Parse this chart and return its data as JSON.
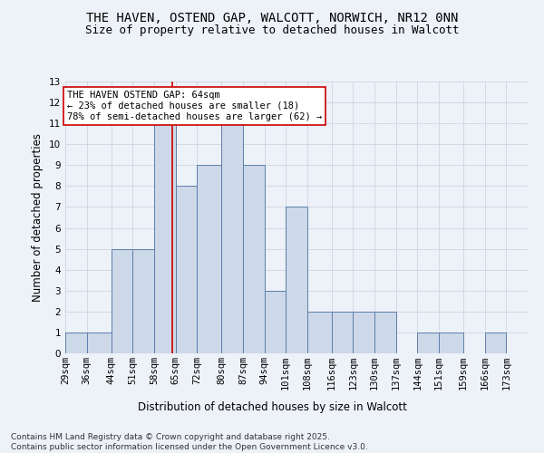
{
  "title1": "THE HAVEN, OSTEND GAP, WALCOTT, NORWICH, NR12 0NN",
  "title2": "Size of property relative to detached houses in Walcott",
  "xlabel": "Distribution of detached houses by size in Walcott",
  "ylabel": "Number of detached properties",
  "bin_labels": [
    "29sqm",
    "36sqm",
    "44sqm",
    "51sqm",
    "58sqm",
    "65sqm",
    "72sqm",
    "80sqm",
    "87sqm",
    "94sqm",
    "101sqm",
    "108sqm",
    "116sqm",
    "123sqm",
    "130sqm",
    "137sqm",
    "144sqm",
    "151sqm",
    "159sqm",
    "166sqm",
    "173sqm"
  ],
  "bin_edges": [
    29,
    36,
    44,
    51,
    58,
    65,
    72,
    80,
    87,
    94,
    101,
    108,
    116,
    123,
    130,
    137,
    144,
    151,
    159,
    166,
    173,
    180
  ],
  "counts": [
    1,
    1,
    5,
    5,
    11,
    8,
    9,
    11,
    9,
    3,
    7,
    2,
    2,
    2,
    2,
    0,
    1,
    1,
    0,
    1,
    0
  ],
  "bar_facecolor": "#cdd8e8",
  "bar_edgecolor": "#5b7faa",
  "grid_color": "#c8d0dc",
  "vline_x": 64,
  "vline_color": "#cc0000",
  "annotation_text": "THE HAVEN OSTEND GAP: 64sqm\n← 23% of detached houses are smaller (18)\n78% of semi-detached houses are larger (62) →",
  "annotation_box_color": "#ffffff",
  "annotation_box_edge": "#cc0000",
  "ylim": [
    0,
    13
  ],
  "yticks": [
    0,
    1,
    2,
    3,
    4,
    5,
    6,
    7,
    8,
    9,
    10,
    11,
    12,
    13
  ],
  "footnote": "Contains HM Land Registry data © Crown copyright and database right 2025.\nContains public sector information licensed under the Open Government Licence v3.0.",
  "bg_color": "#edf1f8",
  "title_fontsize": 10,
  "subtitle_fontsize": 9,
  "axis_label_fontsize": 8.5,
  "tick_fontsize": 7.5,
  "annotation_fontsize": 7.5,
  "footnote_fontsize": 6.5
}
